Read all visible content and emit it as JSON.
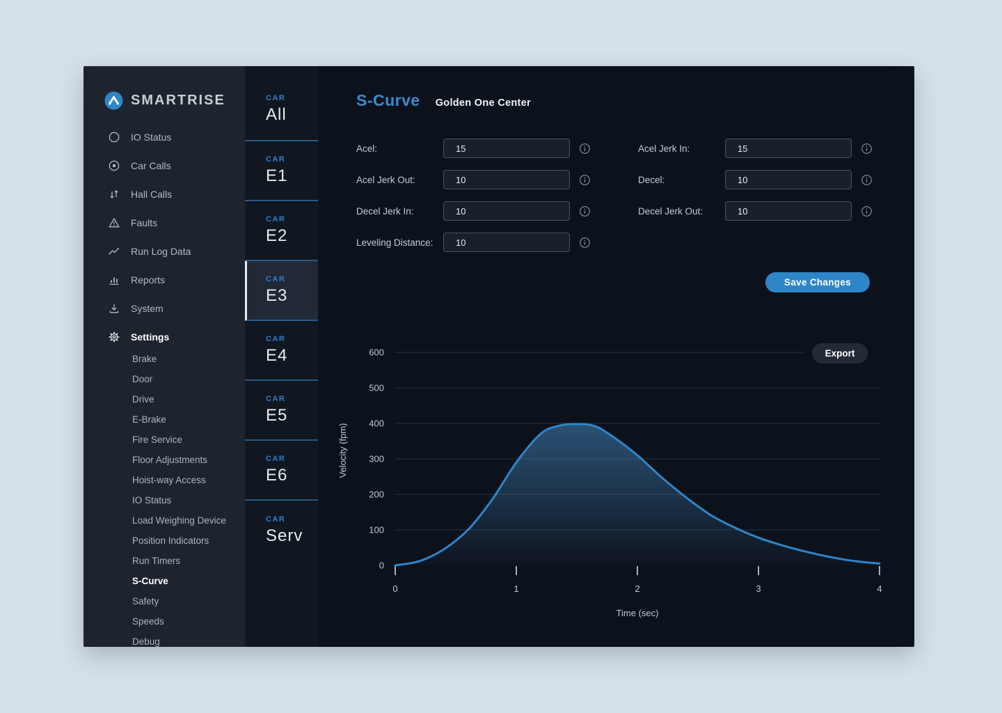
{
  "brand": {
    "name": "SMARTRISE"
  },
  "sidebar": {
    "items": [
      {
        "label": "IO Status",
        "icon": "io-status-icon"
      },
      {
        "label": "Car Calls",
        "icon": "car-calls-icon"
      },
      {
        "label": "Hall Calls",
        "icon": "hall-calls-icon"
      },
      {
        "label": "Faults",
        "icon": "faults-icon"
      },
      {
        "label": "Run Log Data",
        "icon": "run-log-icon"
      },
      {
        "label": "Reports",
        "icon": "reports-icon"
      },
      {
        "label": "System",
        "icon": "system-icon"
      },
      {
        "label": "Settings",
        "icon": "settings-icon",
        "active": true
      }
    ],
    "settings_submenu": [
      "Brake",
      "Door",
      "Drive",
      "E-Brake",
      "Fire Service",
      "Floor Adjustments",
      "Hoist-way Access",
      "IO Status",
      "Load Weighing Device",
      "Position Indicators",
      "Run Timers",
      "S-Curve",
      "Safety",
      "Speeds",
      "Debug"
    ],
    "active_submenu": "S-Curve"
  },
  "car_tabs": {
    "prefix": "CAR",
    "tabs": [
      {
        "label": "All"
      },
      {
        "label": "E1"
      },
      {
        "label": "E2"
      },
      {
        "label": "E3",
        "active": true
      },
      {
        "label": "E4"
      },
      {
        "label": "E5"
      },
      {
        "label": "E6"
      },
      {
        "label": "Serv"
      }
    ]
  },
  "header": {
    "title": "S-Curve",
    "subtitle": "Golden One Center"
  },
  "form": {
    "left": [
      {
        "label": "Acel:",
        "value": "15"
      },
      {
        "label": "Acel Jerk Out:",
        "value": "10"
      },
      {
        "label": "Decel Jerk In:",
        "value": "10"
      },
      {
        "label": "Leveling Distance:",
        "value": "10"
      }
    ],
    "right": [
      {
        "label": "Acel Jerk In:",
        "value": "15"
      },
      {
        "label": "Decel:",
        "value": "10"
      },
      {
        "label": "Decel Jerk Out:",
        "value": "10"
      }
    ],
    "save_label": "Save Changes"
  },
  "chart": {
    "export_label": "Export"
  },
  "chart_data": {
    "type": "area",
    "title": "S-Curve velocity profile",
    "xlabel": "Time (sec)",
    "ylabel": "Velocity (fpm)",
    "xlim": [
      0,
      4
    ],
    "ylim": [
      0,
      600
    ],
    "xticks": [
      0,
      1,
      2,
      3,
      4
    ],
    "yticks": [
      0,
      100,
      200,
      300,
      400,
      500,
      600
    ],
    "grid": true,
    "legend": false,
    "line_color": "#2f86c9",
    "series": [
      {
        "name": "Velocity",
        "x": [
          0,
          0.2,
          0.4,
          0.6,
          0.8,
          1.0,
          1.2,
          1.35,
          1.5,
          1.65,
          1.8,
          2.0,
          2.2,
          2.4,
          2.6,
          2.8,
          3.0,
          3.2,
          3.4,
          3.6,
          3.8,
          4.0
        ],
        "y": [
          0,
          12,
          45,
          100,
          185,
          290,
          370,
          393,
          398,
          392,
          362,
          310,
          248,
          192,
          143,
          107,
          78,
          56,
          38,
          23,
          12,
          5
        ]
      }
    ]
  },
  "colors": {
    "accent_blue": "#2e86c9",
    "title_blue": "#3a8ccd",
    "car_label_blue": "#2d7dd2",
    "panel_bg": "#0c121c",
    "sidebar_bg": "#1e242e",
    "active_tab_bg": "#222936",
    "tab_separator": "#2a5a85",
    "input_bg": "#1a202b",
    "input_border": "#4a5260",
    "export_bg": "#242a35",
    "gridline": "#2b3440",
    "page_bg": "#d6e0ea"
  }
}
